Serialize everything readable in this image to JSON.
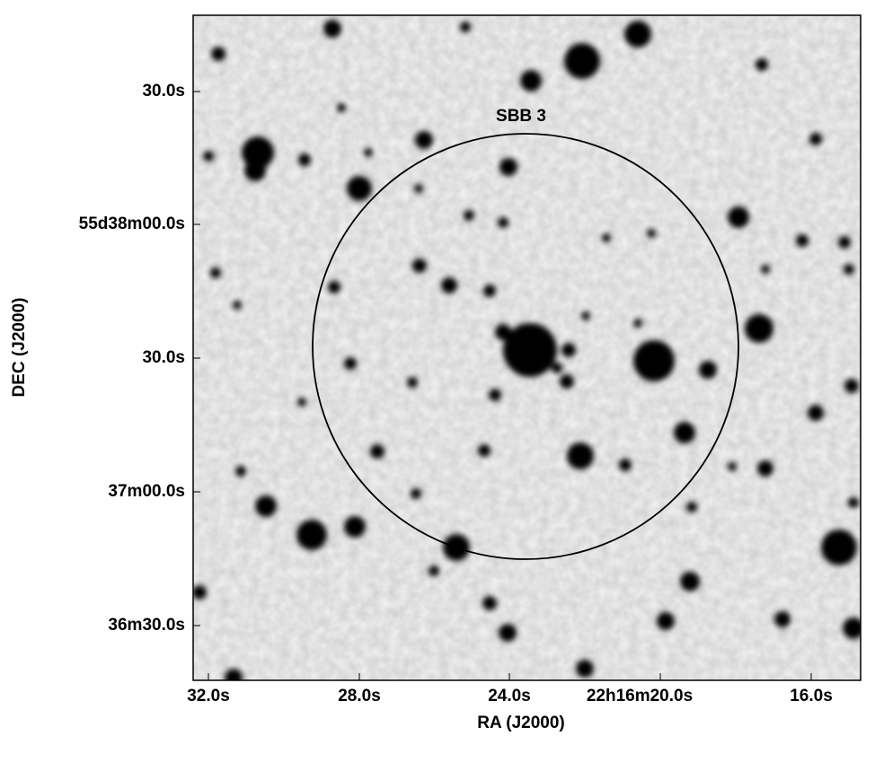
{
  "label": "SBB 3",
  "x_axis": {
    "label": "RA (J2000)",
    "ticks": [
      "32.0s",
      "28.0s",
      "24.0s",
      "22h16m20.0s",
      "16.0s"
    ]
  },
  "y_axis": {
    "label": "DEC (J2000)",
    "ticks": [
      "30.0s",
      "55d38m00.0s",
      "30.0s",
      "37m00.0s",
      "36m30.0s"
    ]
  }
}
